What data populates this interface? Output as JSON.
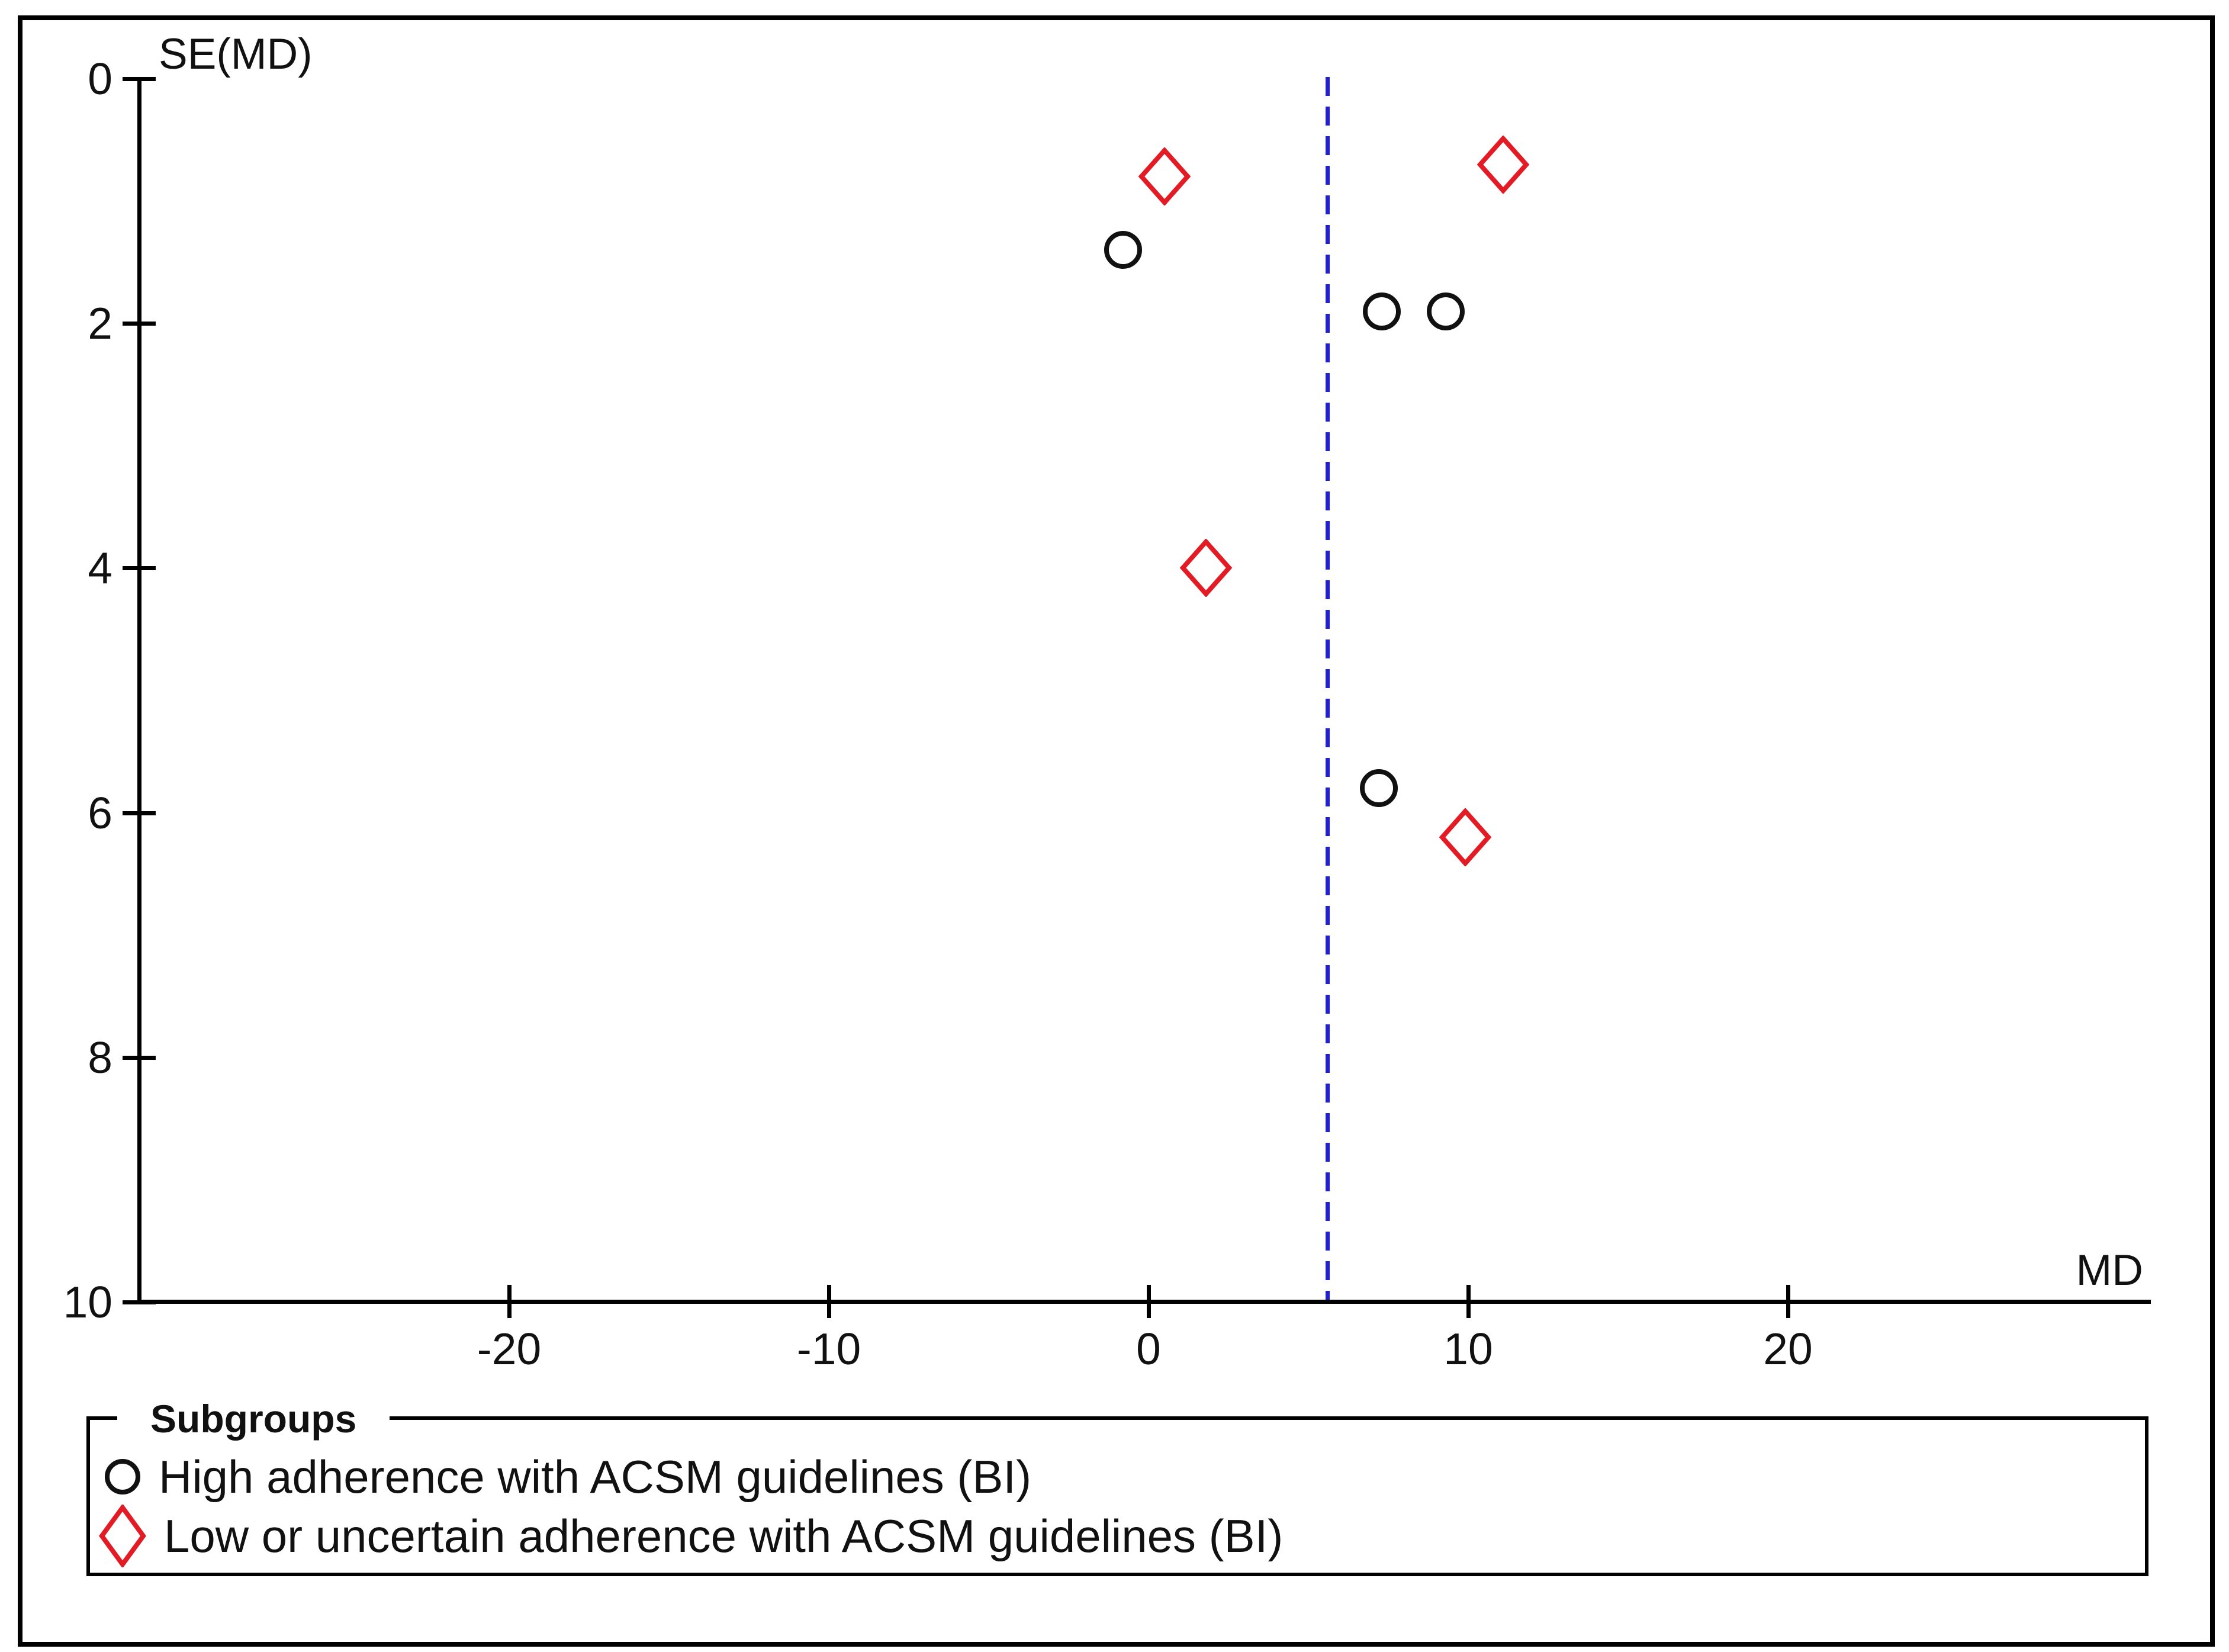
{
  "figure": {
    "y_axis_title": "SE(MD)",
    "x_axis_title": "MD"
  },
  "legend": {
    "title": "Subgroups",
    "items": [
      {
        "label": "High adherence with ACSM guidelines (BI)",
        "marker": "circle"
      },
      {
        "label": "Low or uncertain adherence with ACSM guidelines (BI)",
        "marker": "diamond"
      }
    ]
  },
  "colors": {
    "circle_outline": "#111111",
    "diamond_outline": "#e21b24",
    "pooled_line": "#2020cf",
    "axis": "#000000"
  },
  "chart_data": {
    "type": "scatter",
    "title": "",
    "xlabel": "MD",
    "ylabel": "SE(MD)",
    "x_ticks": [
      -20,
      -10,
      0,
      10,
      20
    ],
    "y_ticks": [
      0,
      2,
      4,
      6,
      8,
      10
    ],
    "xlim": [
      -31.5,
      31.3
    ],
    "ylim": [
      0,
      10
    ],
    "y_axis_inverted": true,
    "grid": false,
    "pooled_effect_md": 5.6,
    "pooled_line_style": "dashed",
    "series": [
      {
        "name": "High adherence with ACSM guidelines (BI)",
        "marker": "circle",
        "points": [
          {
            "md": -0.8,
            "se": 1.4
          },
          {
            "md": 7.3,
            "se": 1.9
          },
          {
            "md": 9.3,
            "se": 1.9
          },
          {
            "md": 7.2,
            "se": 5.8
          }
        ]
      },
      {
        "name": "Low or uncertain adherence with ACSM guidelines (BI)",
        "marker": "diamond",
        "points": [
          {
            "md": 0.5,
            "se": 0.8
          },
          {
            "md": 11.1,
            "se": 0.7
          },
          {
            "md": 1.8,
            "se": 4.0
          },
          {
            "md": 9.9,
            "se": 6.2
          }
        ]
      }
    ]
  }
}
